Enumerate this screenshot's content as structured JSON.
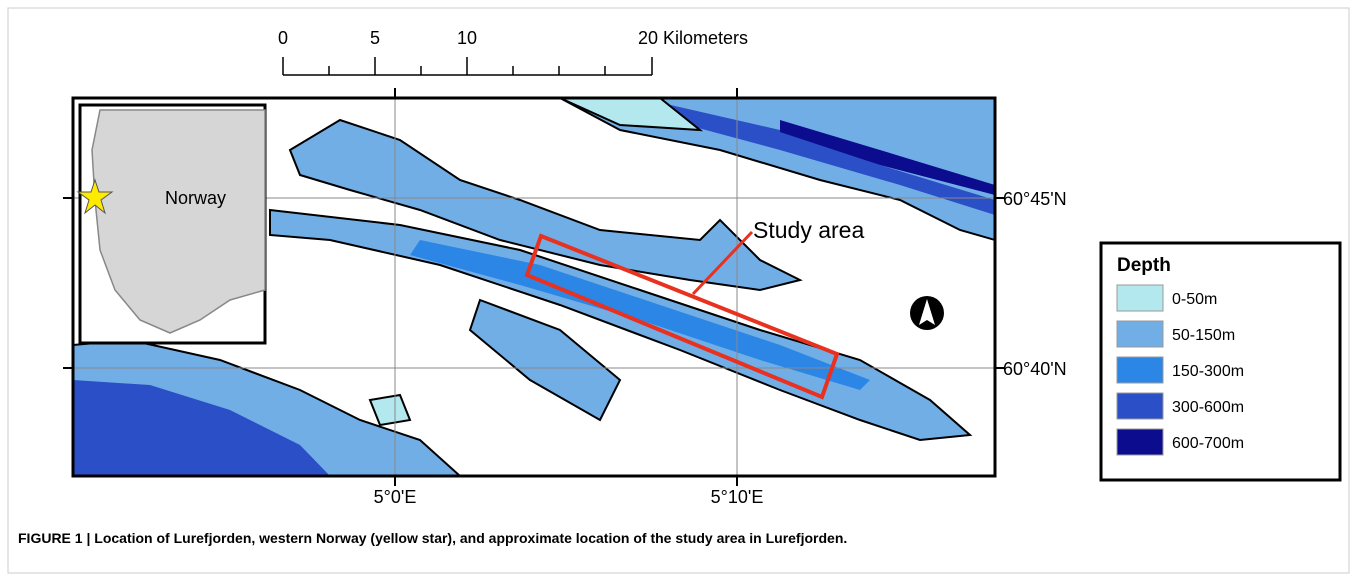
{
  "scale_bar": {
    "labels": [
      "0",
      "5",
      "10",
      "20 Kilometers"
    ]
  },
  "map": {
    "lat_labels": [
      "60°45'N",
      "60°40'N"
    ],
    "lon_labels": [
      "5°0'E",
      "5°10'E"
    ]
  },
  "inset": {
    "label": "Norway"
  },
  "annotation": "Study area",
  "legend": {
    "title": "Depth",
    "entries": [
      {
        "label": "0-50m",
        "color": "#b3e8ee"
      },
      {
        "label": "50-150m",
        "color": "#72aee6"
      },
      {
        "label": "150-300m",
        "color": "#2b86e6"
      },
      {
        "label": "300-600m",
        "color": "#2a4fc6"
      },
      {
        "label": "600-700m",
        "color": "#0c0c8e"
      }
    ]
  },
  "caption": "FIGURE 1 | Location of Lurefjorden, western Norway (yellow star), and approximate location of the study area in Lurefjorden."
}
